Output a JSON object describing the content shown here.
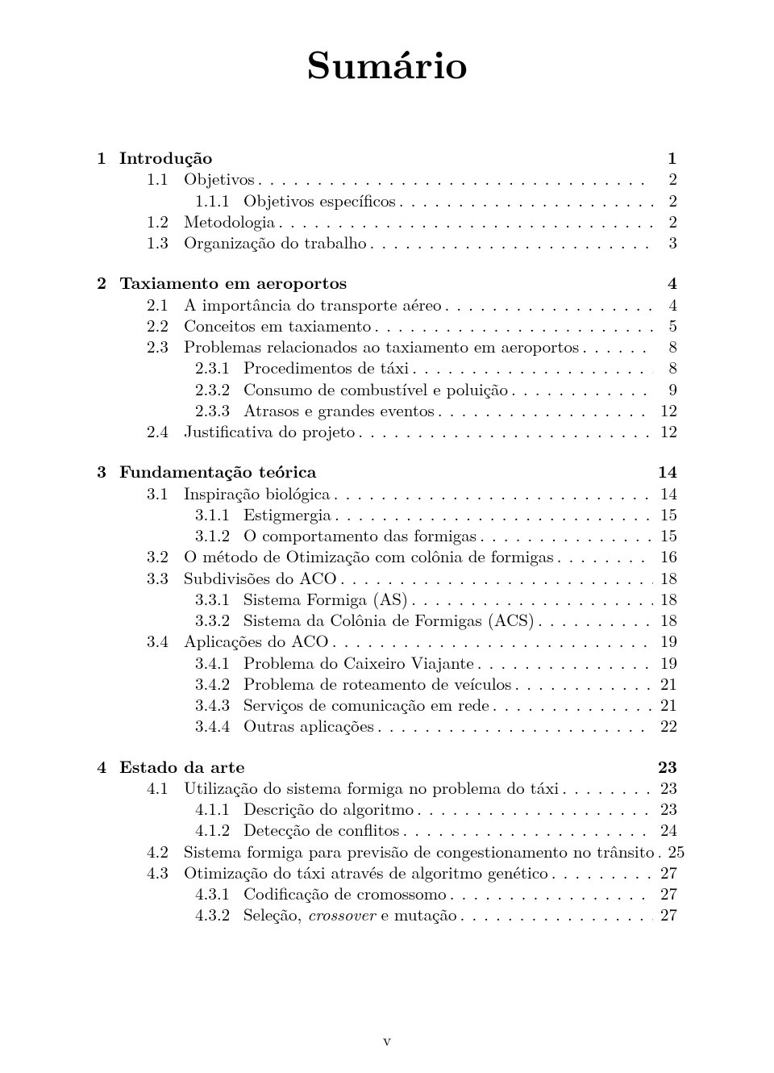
{
  "title": "Sumário",
  "page_label": "v",
  "typography": {
    "title_fontsize": 48,
    "body_fontsize": 21,
    "font_family": "Computer Modern / Latin Modern serif",
    "color": "#000000",
    "background_color": "#ffffff"
  },
  "chapters": [
    {
      "num": "1",
      "title": "Introdução",
      "page": "1",
      "entries": [
        {
          "level": 1,
          "num": "1.1",
          "title": "Objetivos",
          "page": "2"
        },
        {
          "level": 2,
          "num": "1.1.1",
          "title": "Objetivos específicos",
          "page": "2"
        },
        {
          "level": 1,
          "num": "1.2",
          "title": "Metodologia",
          "page": "2"
        },
        {
          "level": 1,
          "num": "1.3",
          "title": "Organização do trabalho",
          "page": "3"
        }
      ]
    },
    {
      "num": "2",
      "title": "Taxiamento em aeroportos",
      "page": "4",
      "entries": [
        {
          "level": 1,
          "num": "2.1",
          "title": "A importância do transporte aéreo",
          "page": "4"
        },
        {
          "level": 1,
          "num": "2.2",
          "title": "Conceitos em taxiamento",
          "page": "5"
        },
        {
          "level": 1,
          "num": "2.3",
          "title": "Problemas relacionados ao taxiamento em aeroportos",
          "page": "8"
        },
        {
          "level": 2,
          "num": "2.3.1",
          "title": "Procedimentos de táxi",
          "page": "8"
        },
        {
          "level": 2,
          "num": "2.3.2",
          "title": "Consumo de combustível e poluição",
          "page": "9"
        },
        {
          "level": 2,
          "num": "2.3.3",
          "title": "Atrasos e grandes eventos",
          "page": "12"
        },
        {
          "level": 1,
          "num": "2.4",
          "title": "Justificativa do projeto",
          "page": "12"
        }
      ]
    },
    {
      "num": "3",
      "title": "Fundamentação teórica",
      "page": "14",
      "entries": [
        {
          "level": 1,
          "num": "3.1",
          "title": "Inspiração biológica",
          "page": "14"
        },
        {
          "level": 2,
          "num": "3.1.1",
          "title": "Estigmergia",
          "page": "15"
        },
        {
          "level": 2,
          "num": "3.1.2",
          "title": "O comportamento das formigas",
          "page": "15"
        },
        {
          "level": 1,
          "num": "3.2",
          "title": "O método de Otimização com colônia de formigas",
          "page": "16"
        },
        {
          "level": 1,
          "num": "3.3",
          "title": "Subdivisões do ACO",
          "page": "18"
        },
        {
          "level": 2,
          "num": "3.3.1",
          "title": "Sistema Formiga (AS)",
          "page": "18"
        },
        {
          "level": 2,
          "num": "3.3.2",
          "title": "Sistema da Colônia de Formigas (ACS)",
          "page": "18"
        },
        {
          "level": 1,
          "num": "3.4",
          "title": "Aplicações do ACO",
          "page": "19"
        },
        {
          "level": 2,
          "num": "3.4.1",
          "title": "Problema do Caixeiro Viajante",
          "page": "19"
        },
        {
          "level": 2,
          "num": "3.4.2",
          "title": "Problema de roteamento de veículos",
          "page": "21"
        },
        {
          "level": 2,
          "num": "3.4.3",
          "title": "Serviços de comunicação em rede",
          "page": "21"
        },
        {
          "level": 2,
          "num": "3.4.4",
          "title": "Outras aplicações",
          "page": "22"
        }
      ]
    },
    {
      "num": "4",
      "title": "Estado da arte",
      "page": "23",
      "entries": [
        {
          "level": 1,
          "num": "4.1",
          "title": "Utilização do sistema formiga no problema do táxi",
          "page": "23"
        },
        {
          "level": 2,
          "num": "4.1.1",
          "title": "Descrição do algoritmo",
          "page": "23"
        },
        {
          "level": 2,
          "num": "4.1.2",
          "title": "Detecção de conflitos",
          "page": "24"
        },
        {
          "level": 1,
          "num": "4.2",
          "title": "Sistema formiga para previsão de congestionamento no trânsito",
          "page": "25"
        },
        {
          "level": 1,
          "num": "4.3",
          "title": "Otimização do táxi através de algoritmo genético",
          "page": "27"
        },
        {
          "level": 2,
          "num": "4.3.1",
          "title": "Codificação de cromossomo",
          "page": "27"
        },
        {
          "level": 2,
          "num": "4.3.2",
          "title_pre": "Seleção, ",
          "title_em": "crossover",
          "title_post": " e mutação",
          "page": "27"
        }
      ]
    }
  ]
}
